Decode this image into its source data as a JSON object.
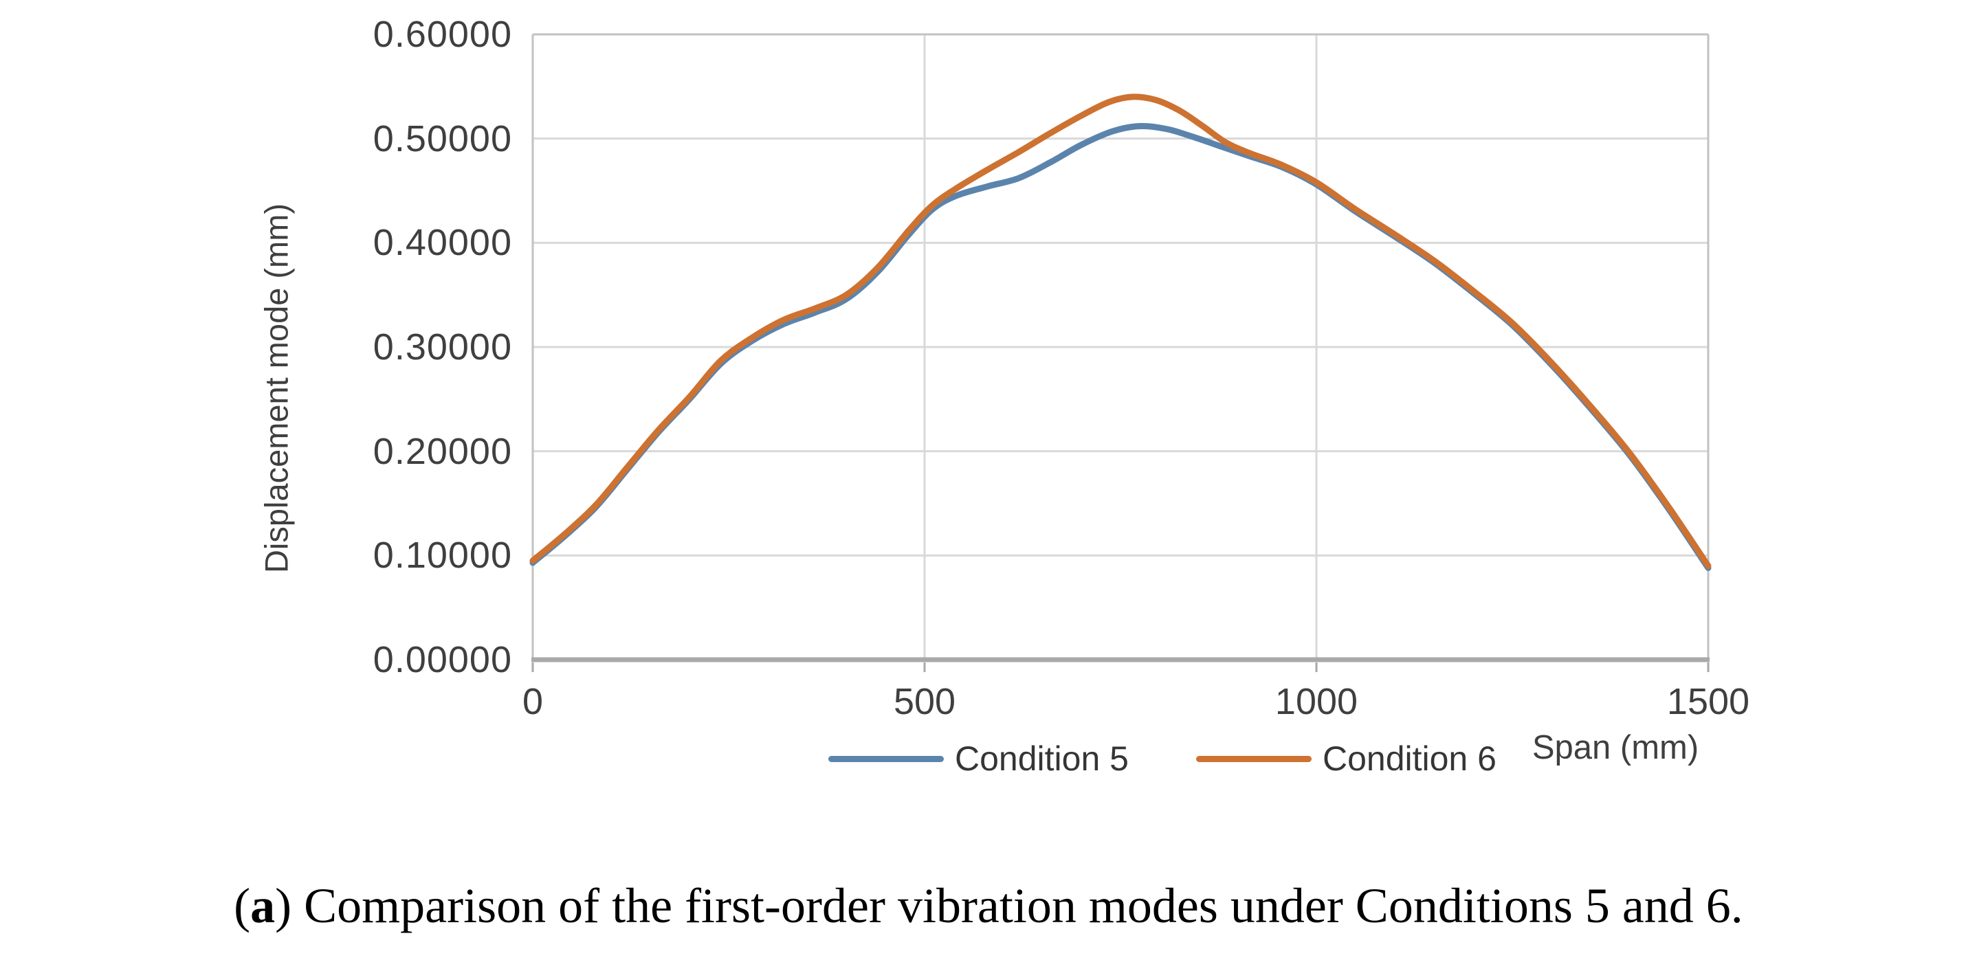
{
  "figure": {
    "caption": {
      "open": "(",
      "marker": "a",
      "close": ") ",
      "body": "Comparison of the first-order vibration modes under Conditions 5 and 6."
    }
  },
  "chart": {
    "y_axis_title": "Displacement mode (mm)",
    "x_axis_title": "Span (mm)",
    "y_tick_labels": [
      "0.60000",
      "0.50000",
      "0.40000",
      "0.30000",
      "0.20000",
      "0.10000",
      "0.00000"
    ],
    "x_tick_labels": [
      "0",
      "500",
      "1000",
      "1500"
    ],
    "legend": {
      "items": [
        {
          "label": "Condition 5",
          "color": "#5b84ad"
        },
        {
          "label": "Condition 6",
          "color": "#cd7231"
        }
      ]
    },
    "colors": {
      "gridline": "#d9d9d9",
      "plot_border": "#c2c2c2",
      "axis_line": "#a9a9a9",
      "tick_mark": "#a9a9a9"
    }
  },
  "chart_data": {
    "type": "line",
    "title": "",
    "xlabel": "Span (mm)",
    "ylabel": "Displacement mode (mm)",
    "xlim": [
      0,
      1500
    ],
    "ylim": [
      0,
      0.6
    ],
    "x_ticks": [
      0,
      500,
      1000,
      1500
    ],
    "y_ticks": [
      0,
      0.1,
      0.2,
      0.3,
      0.4,
      0.5,
      0.6
    ],
    "grid": true,
    "legend_position": "bottom",
    "series": [
      {
        "name": "Condition 5",
        "color": "#5b84ad",
        "points": [
          [
            0,
            0.093
          ],
          [
            40,
            0.118
          ],
          [
            80,
            0.146
          ],
          [
            120,
            0.182
          ],
          [
            160,
            0.218
          ],
          [
            200,
            0.25
          ],
          [
            240,
            0.284
          ],
          [
            280,
            0.306
          ],
          [
            320,
            0.322
          ],
          [
            360,
            0.333
          ],
          [
            400,
            0.346
          ],
          [
            440,
            0.372
          ],
          [
            480,
            0.408
          ],
          [
            510,
            0.432
          ],
          [
            540,
            0.445
          ],
          [
            580,
            0.454
          ],
          [
            620,
            0.462
          ],
          [
            660,
            0.477
          ],
          [
            700,
            0.494
          ],
          [
            740,
            0.507
          ],
          [
            775,
            0.512
          ],
          [
            810,
            0.509
          ],
          [
            845,
            0.501
          ],
          [
            880,
            0.492
          ],
          [
            915,
            0.483
          ],
          [
            955,
            0.473
          ],
          [
            1000,
            0.456
          ],
          [
            1050,
            0.43
          ],
          [
            1100,
            0.406
          ],
          [
            1150,
            0.381
          ],
          [
            1200,
            0.352
          ],
          [
            1250,
            0.321
          ],
          [
            1300,
            0.283
          ],
          [
            1350,
            0.241
          ],
          [
            1400,
            0.196
          ],
          [
            1450,
            0.144
          ],
          [
            1500,
            0.088
          ]
        ]
      },
      {
        "name": "Condition 6",
        "color": "#cd7231",
        "points": [
          [
            0,
            0.095
          ],
          [
            40,
            0.12
          ],
          [
            80,
            0.148
          ],
          [
            120,
            0.184
          ],
          [
            160,
            0.22
          ],
          [
            200,
            0.252
          ],
          [
            240,
            0.287
          ],
          [
            280,
            0.309
          ],
          [
            320,
            0.326
          ],
          [
            360,
            0.337
          ],
          [
            400,
            0.35
          ],
          [
            440,
            0.376
          ],
          [
            480,
            0.412
          ],
          [
            510,
            0.436
          ],
          [
            540,
            0.452
          ],
          [
            580,
            0.47
          ],
          [
            620,
            0.487
          ],
          [
            660,
            0.505
          ],
          [
            700,
            0.522
          ],
          [
            735,
            0.535
          ],
          [
            765,
            0.54
          ],
          [
            795,
            0.537
          ],
          [
            825,
            0.527
          ],
          [
            855,
            0.512
          ],
          [
            885,
            0.496
          ],
          [
            915,
            0.486
          ],
          [
            955,
            0.475
          ],
          [
            1000,
            0.458
          ],
          [
            1050,
            0.432
          ],
          [
            1100,
            0.408
          ],
          [
            1150,
            0.383
          ],
          [
            1200,
            0.354
          ],
          [
            1250,
            0.323
          ],
          [
            1300,
            0.285
          ],
          [
            1350,
            0.243
          ],
          [
            1400,
            0.198
          ],
          [
            1450,
            0.146
          ],
          [
            1500,
            0.09
          ]
        ]
      }
    ]
  }
}
